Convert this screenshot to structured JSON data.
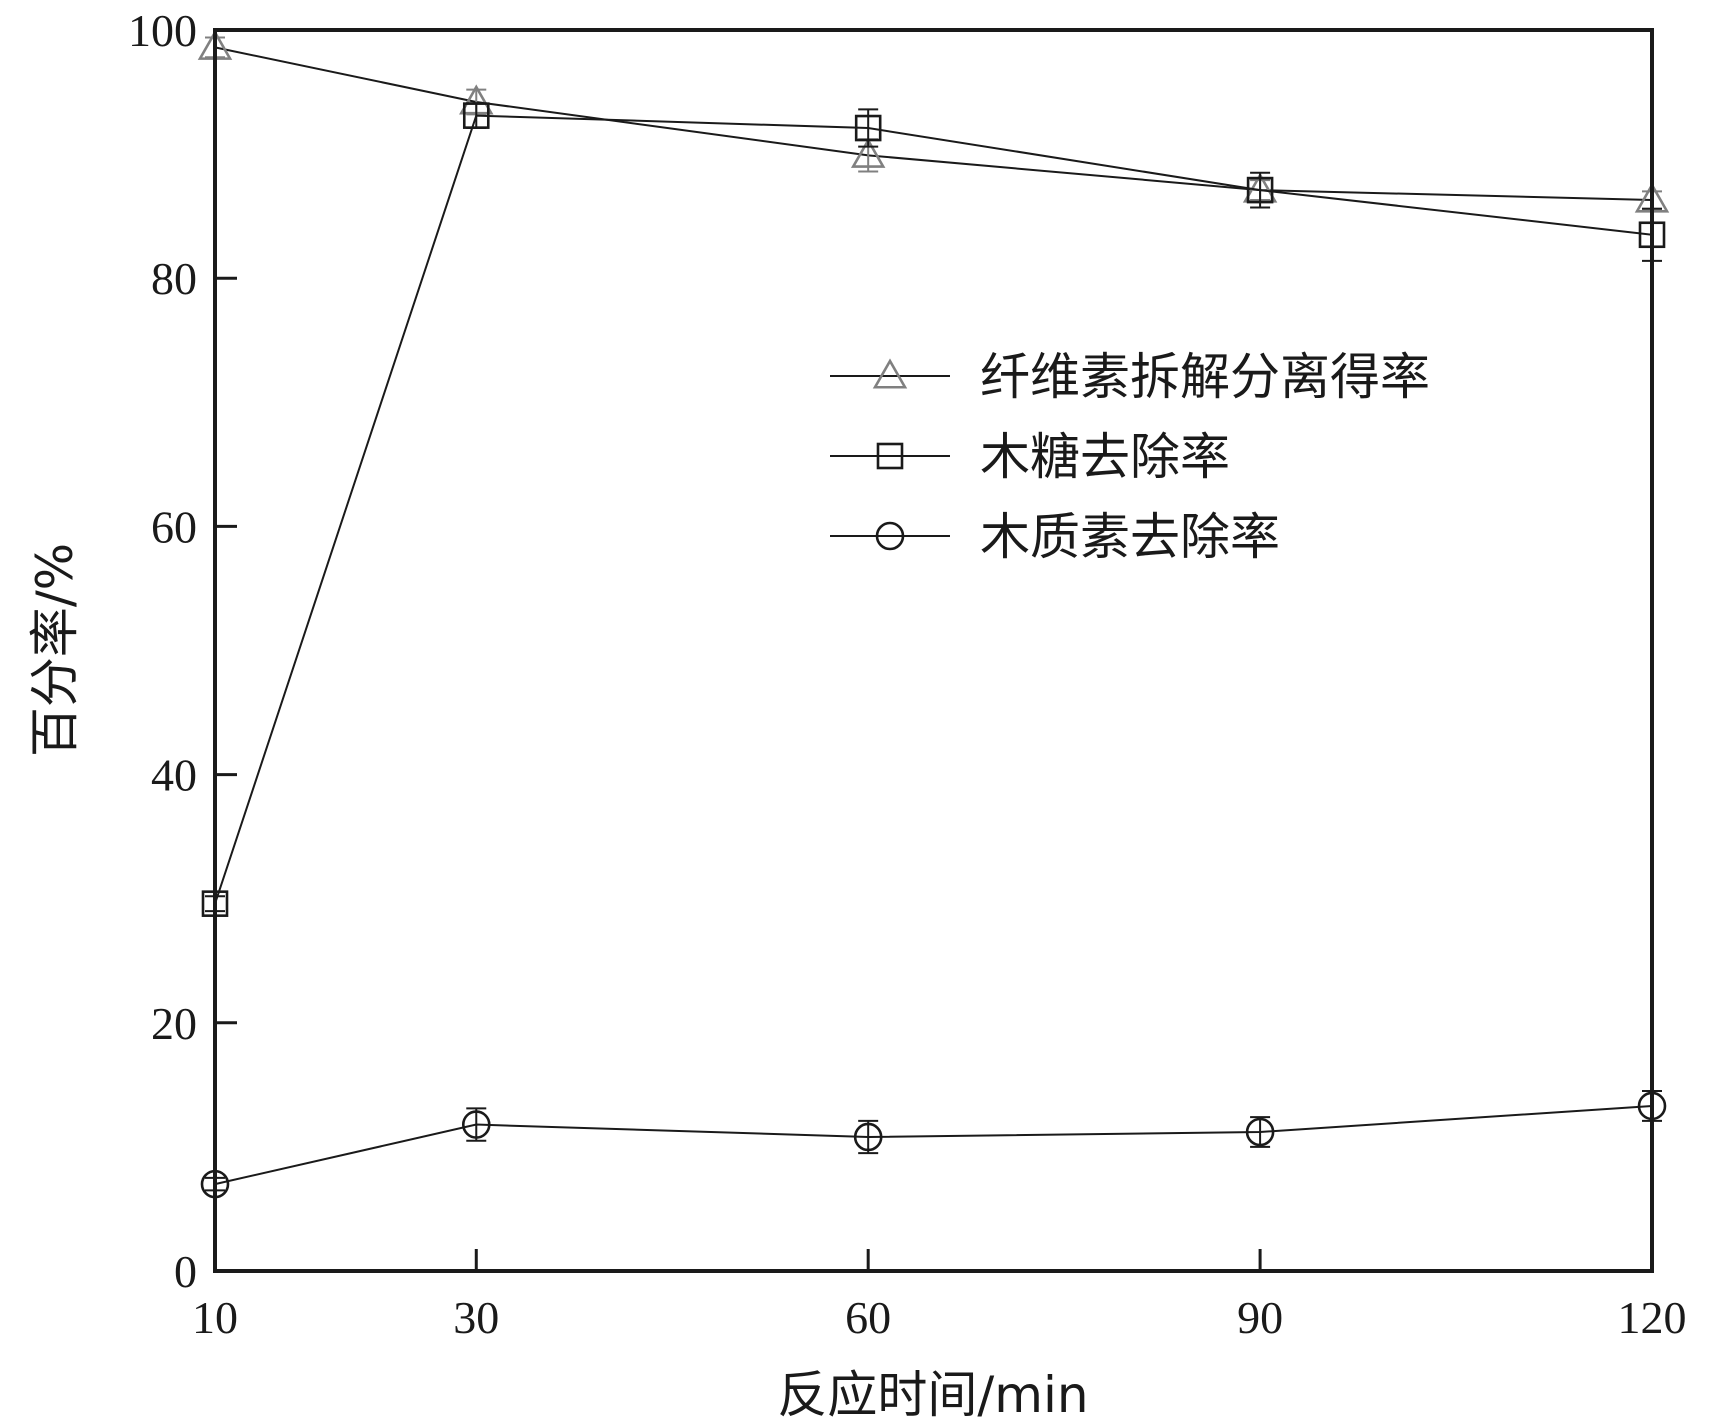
{
  "chart_data": {
    "type": "line",
    "xlabel": "反应时间/min",
    "ylabel": "百分率/%",
    "x": [
      10,
      30,
      60,
      90,
      120
    ],
    "x_ticks": [
      "10",
      "30",
      "60",
      "90",
      "120"
    ],
    "y_ticks": [
      "0",
      "20",
      "40",
      "60",
      "80",
      "100"
    ],
    "xlim": [
      10,
      120
    ],
    "ylim": [
      0,
      100
    ],
    "grid": false,
    "legend_position": "upper-right",
    "series": [
      {
        "name": "纤维素拆解分离得率",
        "marker": "triangle",
        "color": "#808080",
        "values": [
          98.6,
          94.2,
          89.9,
          87.1,
          86.3
        ],
        "errors": [
          0.8,
          1.0,
          1.3,
          0.8,
          0.7
        ]
      },
      {
        "name": "木糖去除率",
        "marker": "square",
        "color": "#1a1a1a",
        "values": [
          29.6,
          93.1,
          92.1,
          87.1,
          83.5
        ],
        "errors": [
          0.6,
          1.0,
          1.5,
          1.4,
          2.1
        ]
      },
      {
        "name": "木质素去除率",
        "marker": "circle",
        "color": "#1a1a1a",
        "values": [
          7.0,
          11.8,
          10.8,
          11.2,
          13.3
        ],
        "errors": [
          0.5,
          1.3,
          1.3,
          1.2,
          1.2
        ]
      }
    ]
  }
}
